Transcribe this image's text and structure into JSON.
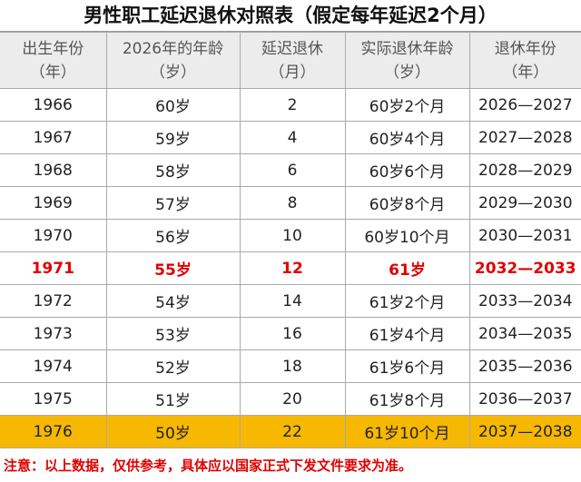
{
  "title": "男性职工延迟退休对照表（假定每年延迟2个月）",
  "table": {
    "header": [
      [
        "出生年份",
        "（年）"
      ],
      [
        "2026年的年龄",
        "（岁）"
      ],
      [
        "延迟退休",
        "（月）"
      ],
      [
        "实际退休年龄",
        "（岁）"
      ],
      [
        "退休年份",
        "（年）"
      ]
    ],
    "rows": [
      [
        "1966",
        "60岁",
        "2",
        "60岁2个月",
        "2026—2027"
      ],
      [
        "1967",
        "59岁",
        "4",
        "60岁4个月",
        "2027—2028"
      ],
      [
        "1968",
        "58岁",
        "6",
        "60岁6个月",
        "2028—2029"
      ],
      [
        "1969",
        "57岁",
        "8",
        "60岁8个月",
        "2029—2030"
      ],
      [
        "1970",
        "56岁",
        "10",
        "60岁10个月",
        "2030—2031"
      ],
      [
        "1971",
        "55岁",
        "12",
        "61岁",
        "2032—2033"
      ],
      [
        "1972",
        "54岁",
        "14",
        "61岁2个月",
        "2033—2034"
      ],
      [
        "1973",
        "53岁",
        "16",
        "61岁4个月",
        "2034—2035"
      ],
      [
        "1974",
        "52岁",
        "18",
        "61岁6个月",
        "2035—2036"
      ],
      [
        "1975",
        "51岁",
        "20",
        "61岁8个月",
        "2036—2037"
      ],
      [
        "1976",
        "50岁",
        "22",
        "61岁10个月",
        "2037—2038"
      ]
    ]
  },
  "note": "注意：以上数据，仅供参考，具体应以国家正式下发文件要求为准。"
}
